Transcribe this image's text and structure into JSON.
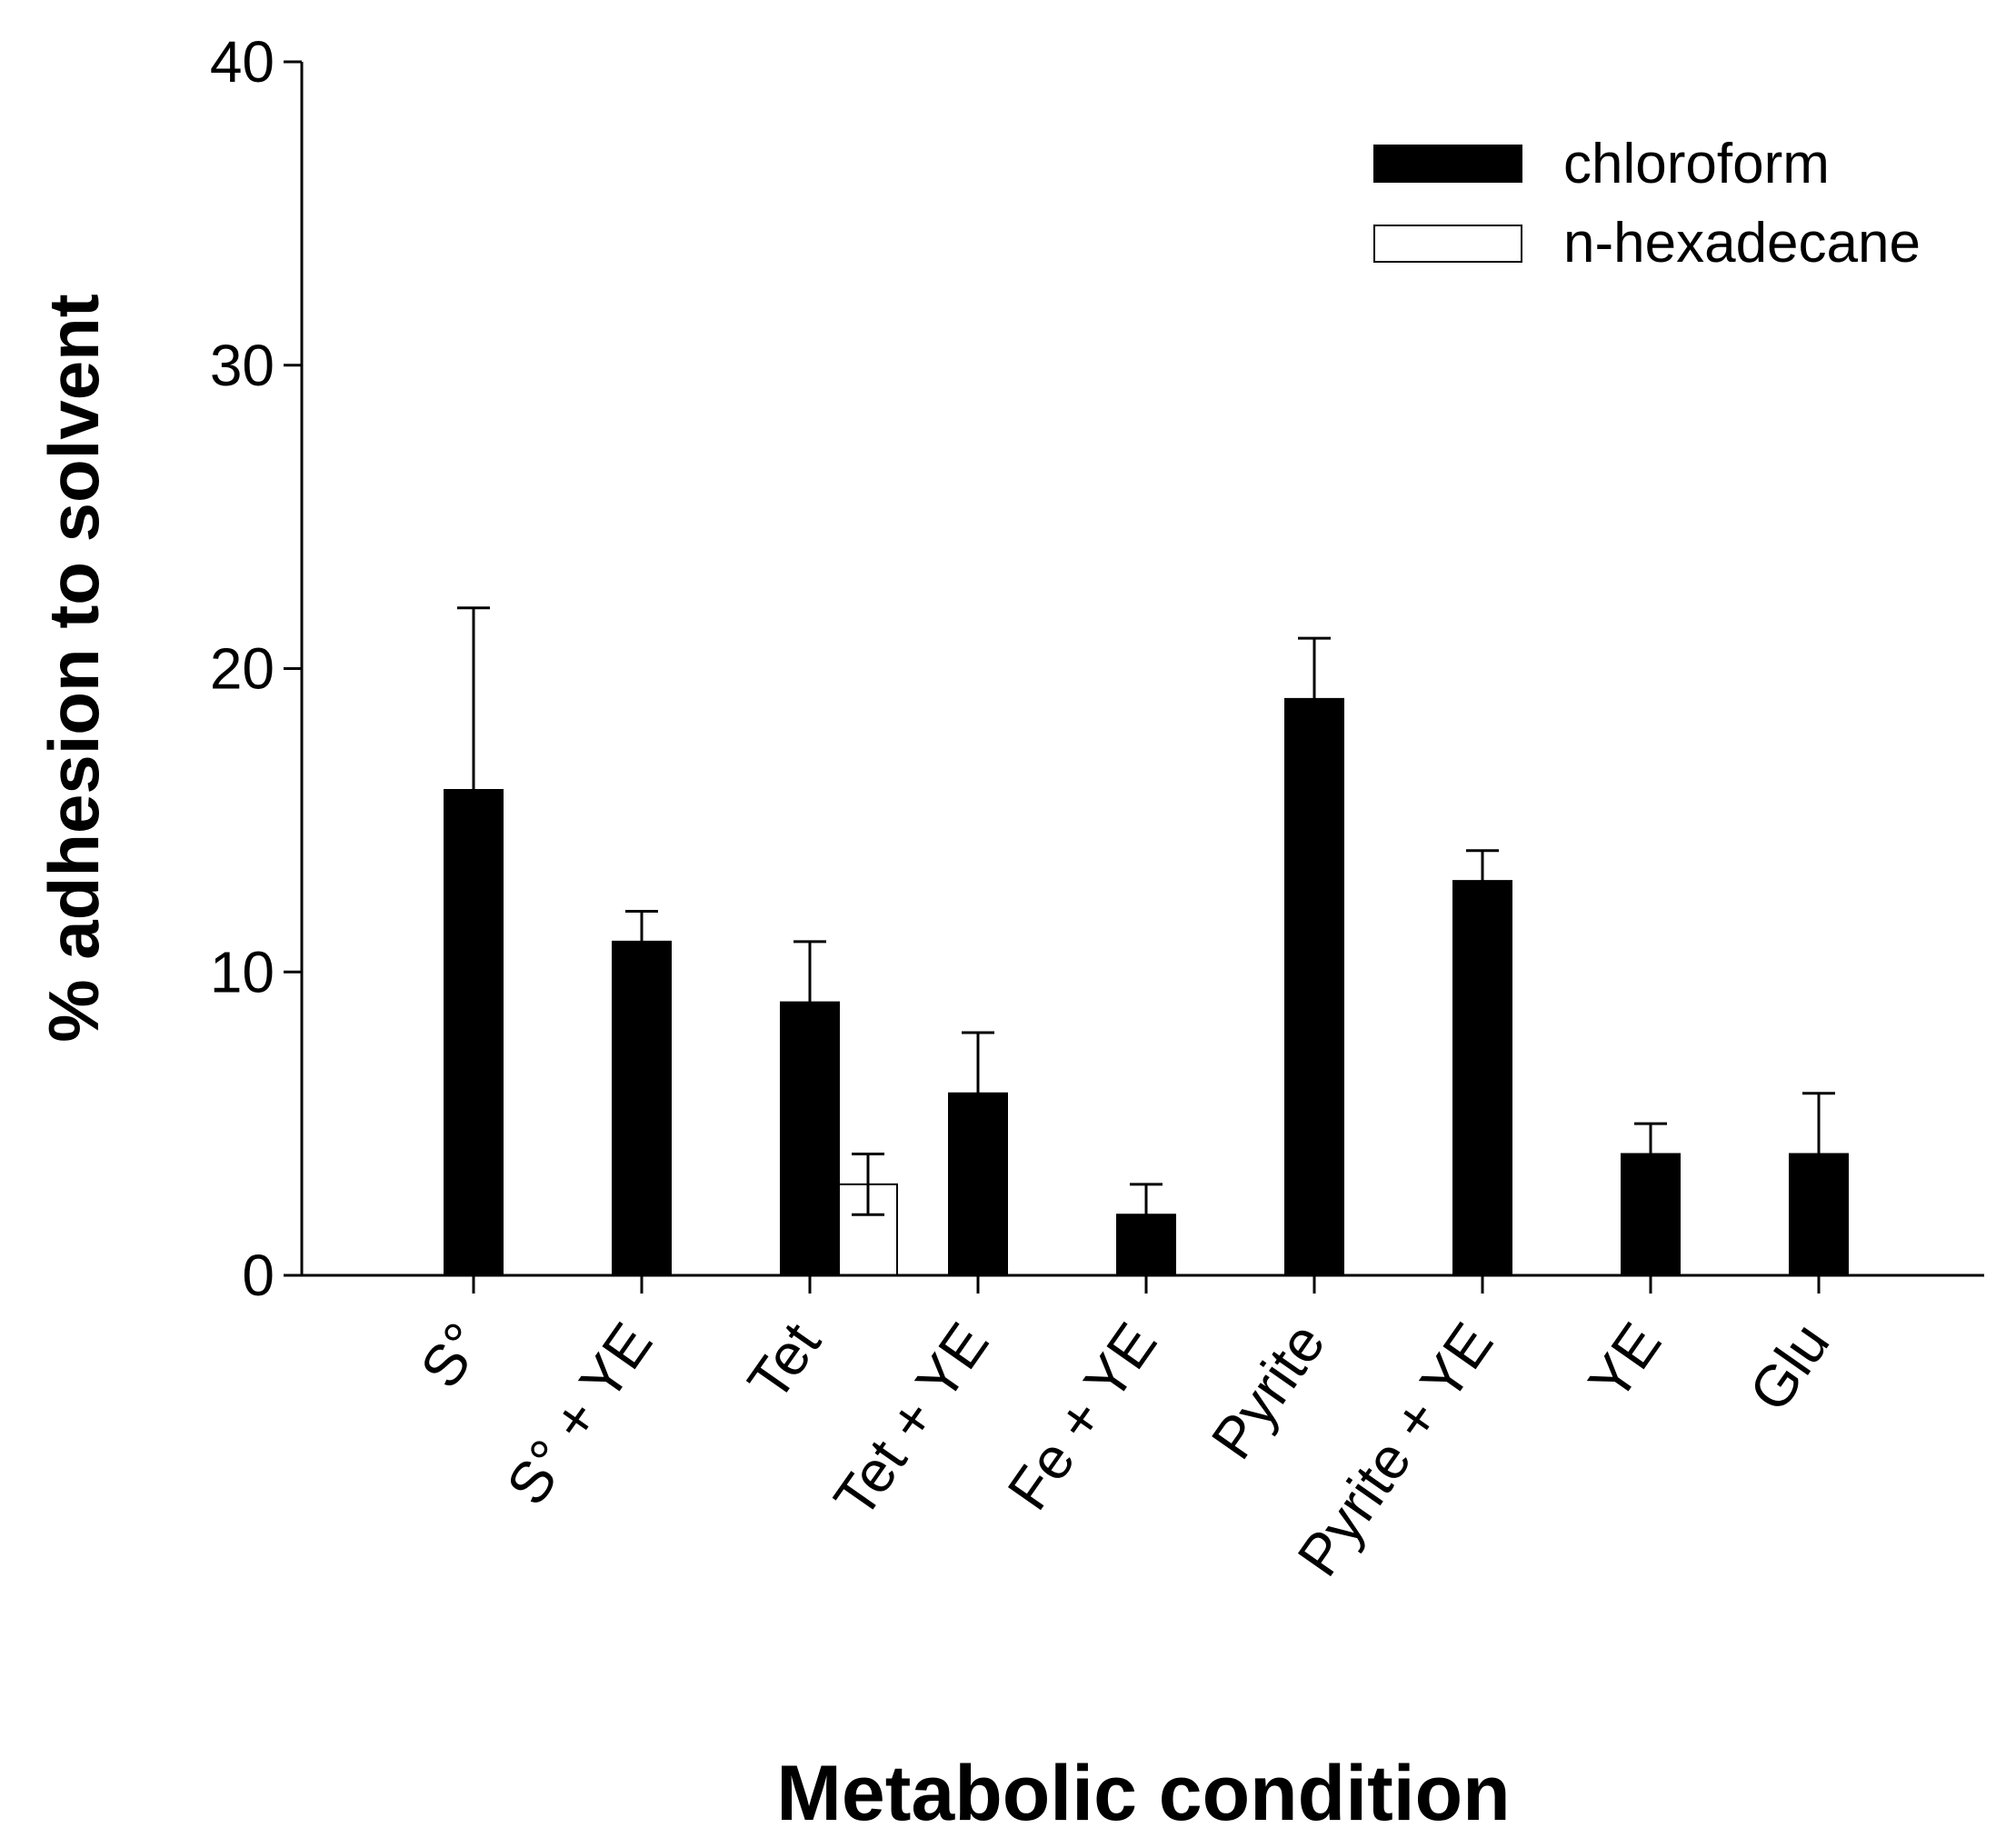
{
  "chart_data": {
    "type": "bar",
    "title": "",
    "xlabel": "Metabolic condition",
    "ylabel": "% adhesion to solvent",
    "ylim": [
      0,
      40
    ],
    "yticks": [
      "0",
      "10",
      "20",
      "30",
      "40"
    ],
    "ytick_values": [
      0,
      10,
      20,
      30,
      40
    ],
    "grid": false,
    "legend_position": "top-right",
    "categories": [
      "S°",
      "S° + YE",
      "Tet",
      "Tet + YE",
      "Fe + YE",
      "Pyrite",
      "Pyrite + YE",
      "YE",
      "Glu"
    ],
    "series": [
      {
        "name": "chloroform",
        "color": "#000000",
        "values": [
          16,
          11,
          9,
          6,
          2,
          19,
          13,
          4,
          4
        ],
        "errors": [
          6,
          1,
          2,
          2,
          1,
          2,
          1,
          1,
          2
        ]
      },
      {
        "name": "n-hexadecane",
        "color": "#ffffff",
        "values": [
          null,
          null,
          3,
          null,
          null,
          null,
          null,
          null,
          null
        ],
        "errors": [
          null,
          null,
          1,
          null,
          null,
          null,
          null,
          null,
          null
        ]
      }
    ]
  }
}
